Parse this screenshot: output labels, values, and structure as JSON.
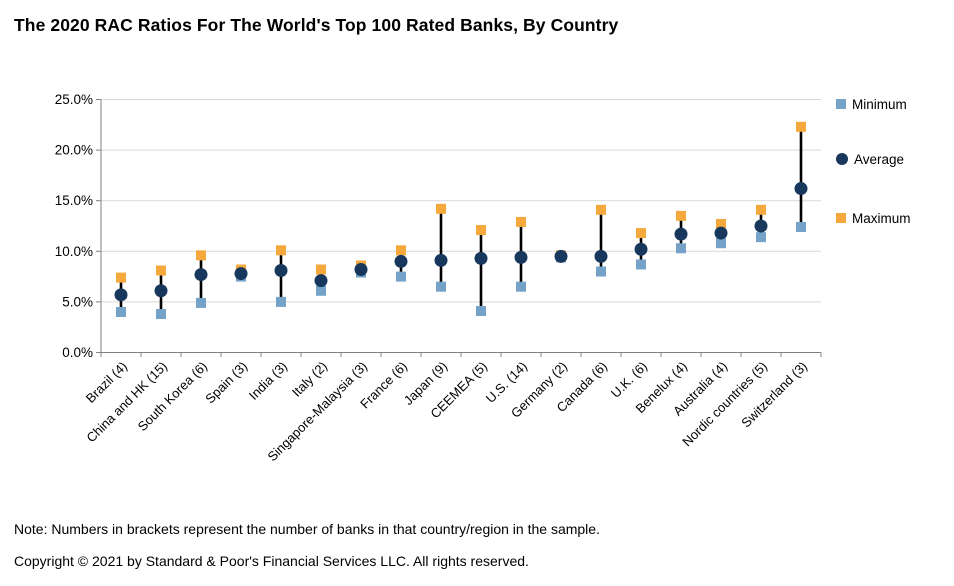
{
  "title": "The 2020 RAC Ratios For The World's Top 100 Rated Banks, By Country",
  "footer": {
    "note": "Note: Numbers in brackets represent the number of banks in that country/region in the sample.",
    "copyright": "Copyright © 2021 by Standard & Poor's Financial Services LLC. All rights reserved."
  },
  "colors": {
    "minimum": "#74A2C8",
    "average": "#17375D",
    "maximum": "#F5A83B",
    "hilo_line": "#000000",
    "gridline": "#D9D9D9",
    "axis": "#808080",
    "text": "#000000"
  },
  "chart_data": {
    "type": "scatter",
    "subtype": "high-low-range",
    "unit": "%",
    "categories": [
      "Brazil (4)",
      "China and HK (15)",
      "South Korea (6)",
      "Spain (3)",
      "India (3)",
      "Italy (2)",
      "Singapore-Malaysia (3)",
      "France (6)",
      "Japan (9)",
      "CEEMEA (5)",
      "U.S. (14)",
      "Germany (2)",
      "Canada (6)",
      "U.K. (6)",
      "Benelux (4)",
      "Australia (4)",
      "Nordic countries (5)",
      "Switzerland (3)"
    ],
    "series": [
      {
        "name": "Minimum",
        "marker": "square",
        "color": "#74A2C8",
        "values": [
          4.0,
          3.8,
          4.9,
          7.5,
          5.0,
          6.1,
          7.9,
          7.5,
          6.5,
          4.1,
          6.5,
          9.4,
          8.0,
          8.7,
          10.3,
          10.8,
          11.4,
          12.4
        ]
      },
      {
        "name": "Average",
        "marker": "circle",
        "color": "#17375D",
        "values": [
          5.7,
          6.1,
          7.7,
          7.8,
          8.1,
          7.1,
          8.2,
          9.0,
          9.1,
          9.3,
          9.4,
          9.5,
          9.5,
          10.2,
          11.7,
          11.8,
          12.5,
          16.2
        ]
      },
      {
        "name": "Maximum",
        "marker": "square",
        "color": "#F5A83B",
        "values": [
          7.4,
          8.1,
          9.6,
          8.2,
          10.1,
          8.2,
          8.6,
          10.1,
          14.2,
          12.1,
          12.9,
          9.6,
          14.1,
          11.8,
          13.5,
          12.7,
          14.1,
          22.3
        ]
      }
    ],
    "xlabel": "",
    "ylabel": "",
    "ylim": [
      0,
      25
    ],
    "ytick_step": 5,
    "ytick_labels": [
      "0.0%",
      "5.0%",
      "10.0%",
      "15.0%",
      "20.0%",
      "25.0%"
    ],
    "grid": "horizontal",
    "legend_position": "right",
    "hilo_lines": true
  }
}
